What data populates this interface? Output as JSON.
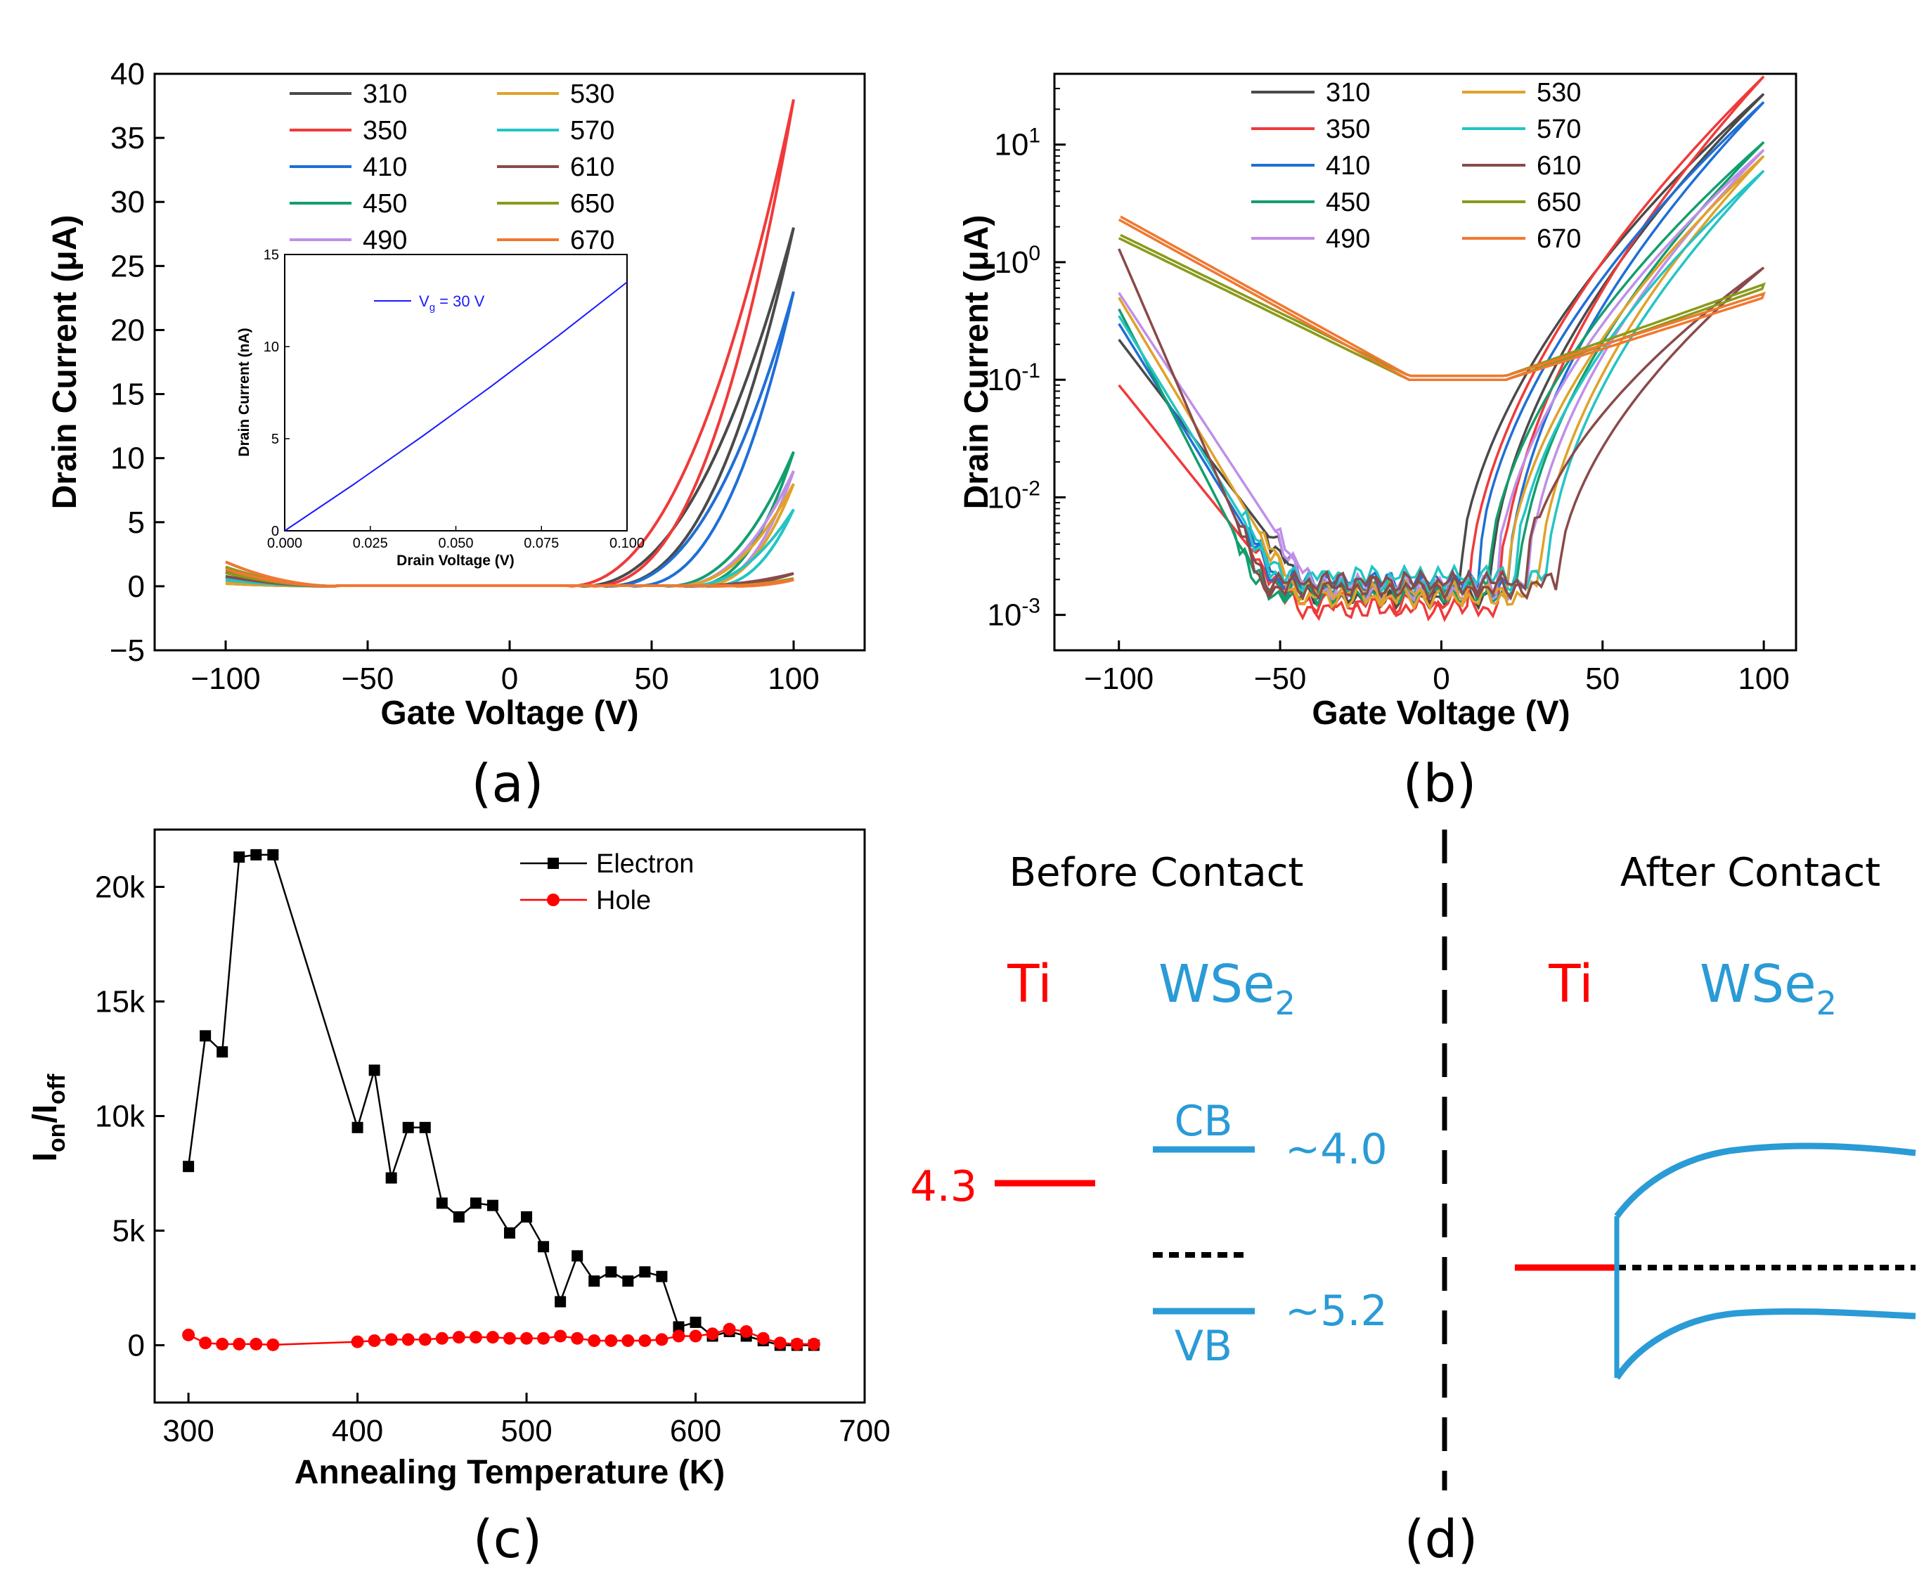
{
  "legend_labels": [
    "310",
    "350",
    "410",
    "450",
    "490",
    "530",
    "570",
    "610",
    "650",
    "670"
  ],
  "legend_colors": [
    "#4a4a4a",
    "#f03a3a",
    "#1f6fd6",
    "#139e6e",
    "#bf8fe8",
    "#e0a22a",
    "#24c4c4",
    "#8a4a4a",
    "#8a9a1a",
    "#f07830"
  ],
  "panel_labels": {
    "a": "(a)",
    "b": "(b)",
    "c": "(c)",
    "d": "(d)"
  },
  "chart_data": [
    {
      "type": "line",
      "panel": "a",
      "xlabel": "Gate Voltage (V)",
      "ylabel": "Drain Current (μA)",
      "xlim": [
        -125,
        125
      ],
      "ylim": [
        -5,
        40
      ],
      "xticks": [
        -100,
        -50,
        0,
        50,
        100
      ],
      "xtick_labels": [
        "−100",
        "−50",
        "0",
        "50",
        "100"
      ],
      "yticks": [
        -5,
        0,
        5,
        10,
        15,
        20,
        25,
        30,
        35,
        40
      ],
      "ytick_labels": [
        "−5",
        "0",
        "5",
        "10",
        "15",
        "20",
        "25",
        "30",
        "35",
        "40"
      ],
      "series": [
        {
          "name": "310",
          "max_current": 28,
          "threshold_v": 25
        },
        {
          "name": "350",
          "max_current": 38,
          "threshold_v": 20
        },
        {
          "name": "410",
          "max_current": 23,
          "threshold_v": 35
        },
        {
          "name": "450",
          "max_current": 10.5,
          "threshold_v": 55
        },
        {
          "name": "490",
          "max_current": 9,
          "threshold_v": 58
        },
        {
          "name": "530",
          "max_current": 8,
          "threshold_v": 58
        },
        {
          "name": "570",
          "max_current": 6,
          "threshold_v": 62
        },
        {
          "name": "610",
          "max_current": 1,
          "threshold_v": 60
        },
        {
          "name": "650",
          "max_current": 0.6,
          "threshold_v": 70
        },
        {
          "name": "670",
          "max_current": 0.5,
          "threshold_v": 70
        }
      ],
      "inset": {
        "type": "line",
        "xlabel": "Drain Voltage (V)",
        "ylabel": "Drain Current  (nA)",
        "xlim": [
          0,
          0.1
        ],
        "ylim": [
          0,
          15
        ],
        "xticks": [
          0,
          0.025,
          0.05,
          0.075,
          0.1
        ],
        "xtick_labels": [
          "0.000",
          "0.025",
          "0.050",
          "0.075",
          "0.100"
        ],
        "yticks": [
          0,
          5,
          10,
          15
        ],
        "ytick_labels": [
          "0",
          "5",
          "10",
          "15"
        ],
        "legend": "V",
        "legend_sub": "g",
        "legend_rest": " = 30 V",
        "x": [
          0,
          0.02,
          0.04,
          0.06,
          0.08,
          0.1
        ],
        "y": [
          0,
          2.5,
          5.1,
          7.8,
          10.6,
          13.5
        ]
      }
    },
    {
      "type": "line",
      "panel": "b",
      "yscale": "log",
      "xlabel": "Gate Voltage (V)",
      "ylabel": "Drain Current (μA)",
      "xlim": [
        -120,
        110
      ],
      "ylim": [
        0.0005,
        40
      ],
      "xticks": [
        -100,
        -50,
        0,
        50,
        100
      ],
      "xtick_labels": [
        "−100",
        "−50",
        "0",
        "50",
        "100"
      ],
      "ytick_mantissa": [
        "10",
        "10",
        "10",
        "10",
        "10"
      ],
      "ytick_exponents": [
        "-3",
        "-2",
        "-1",
        "0",
        "1"
      ],
      "series": [
        {
          "name": "310",
          "left_end": 0.22,
          "right_end": 27,
          "floor": 0.0015
        },
        {
          "name": "350",
          "left_end": 0.09,
          "right_end": 38,
          "floor": 0.0012
        },
        {
          "name": "410",
          "left_end": 0.3,
          "right_end": 23,
          "floor": 0.0018
        },
        {
          "name": "450",
          "left_end": 0.4,
          "right_end": 10.5,
          "floor": 0.0016
        },
        {
          "name": "490",
          "left_end": 0.55,
          "right_end": 9,
          "floor": 0.0017
        },
        {
          "name": "530",
          "left_end": 0.5,
          "right_end": 8,
          "floor": 0.0015
        },
        {
          "name": "570",
          "left_end": 0.35,
          "right_end": 6,
          "floor": 0.002
        },
        {
          "name": "610",
          "left_end": 1.3,
          "right_end": 0.9,
          "floor": 0.0018
        },
        {
          "name": "650",
          "left_end": 1.6,
          "right_end": 0.6,
          "floor": 0.1
        },
        {
          "name": "670",
          "left_end": 2.3,
          "right_end": 0.5,
          "floor": 0.1
        }
      ]
    },
    {
      "type": "line",
      "panel": "c",
      "xlabel": "Annealing Temperature (K)",
      "ylabel_main": "I",
      "ylabel_sub1": "on",
      "ylabel_mid": "/I",
      "ylabel_sub2": "off",
      "xlim": [
        280,
        700
      ],
      "ylim": [
        -2500,
        22500
      ],
      "xticks": [
        300,
        400,
        500,
        600,
        700
      ],
      "xtick_labels": [
        "300",
        "400",
        "500",
        "600",
        "700"
      ],
      "yticks": [
        0,
        5000,
        10000,
        15000,
        20000
      ],
      "ytick_labels": [
        "0",
        "5k",
        "10k",
        "15k",
        "20k"
      ],
      "series": [
        {
          "name": "Electron",
          "color": "#000000",
          "x": [
            300,
            310,
            320,
            330,
            340,
            350,
            400,
            410,
            420,
            430,
            440,
            450,
            460,
            470,
            480,
            490,
            500,
            510,
            520,
            530,
            540,
            550,
            560,
            570,
            580,
            590,
            600,
            610,
            620,
            630,
            640,
            650,
            660,
            670
          ],
          "y": [
            7800,
            13500,
            12800,
            21300,
            21400,
            21400,
            9500,
            12000,
            7300,
            9500,
            9500,
            6200,
            5600,
            6200,
            6100,
            4900,
            5600,
            4300,
            1900,
            3900,
            2800,
            3200,
            2800,
            3200,
            3000,
            800,
            1000,
            400,
            600,
            400,
            200,
            0,
            0,
            0
          ]
        },
        {
          "name": "Hole",
          "color": "#ff0000",
          "x": [
            300,
            310,
            320,
            330,
            340,
            350,
            400,
            410,
            420,
            430,
            440,
            450,
            460,
            470,
            480,
            490,
            500,
            510,
            520,
            530,
            540,
            550,
            560,
            570,
            580,
            590,
            600,
            610,
            620,
            630,
            640,
            650,
            660,
            670
          ],
          "y": [
            450,
            100,
            50,
            50,
            50,
            20,
            150,
            200,
            250,
            250,
            250,
            300,
            350,
            350,
            350,
            300,
            300,
            300,
            400,
            300,
            200,
            200,
            200,
            200,
            250,
            400,
            400,
            500,
            700,
            600,
            300,
            100,
            50,
            50
          ]
        }
      ]
    }
  ],
  "band": {
    "before_title": "Before Contact",
    "after_title": "After Contact",
    "ti": "Ti",
    "wse2_main": "WSe",
    "wse2_sub": "2",
    "cb": "CB",
    "vb": "VB",
    "cb_value": "~4.0",
    "vb_value": "~5.2",
    "ti_value": "4.3",
    "ti_color": "#ff0000",
    "wse2_color": "#2a9bd6"
  }
}
